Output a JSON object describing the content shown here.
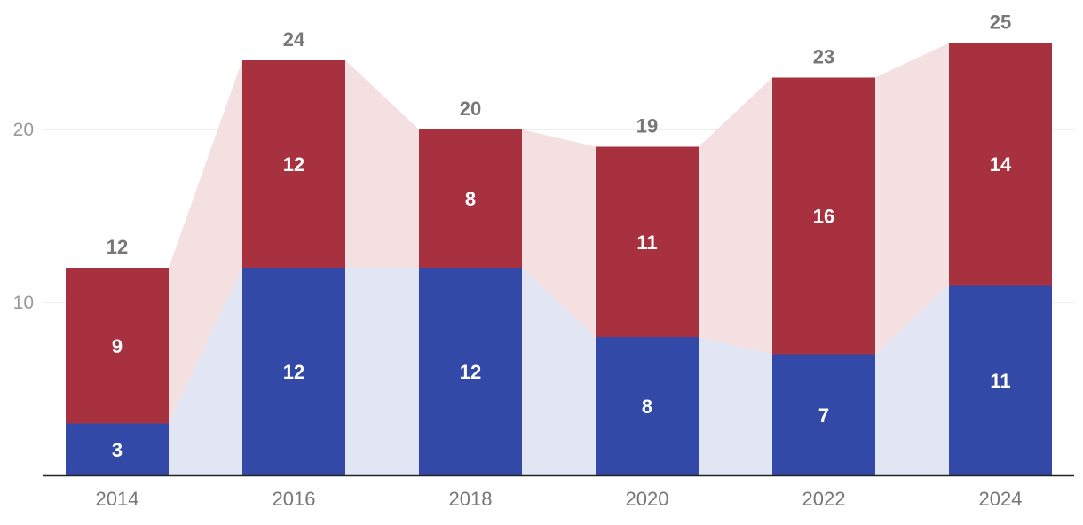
{
  "chart_data": {
    "type": "bar",
    "stacked": true,
    "categories": [
      "2014",
      "2016",
      "2018",
      "2020",
      "2022",
      "2024"
    ],
    "series": [
      {
        "values": [
          3,
          12,
          12,
          8,
          7,
          11
        ],
        "color": "#3349a8",
        "band_color": "#e2e5f4"
      },
      {
        "values": [
          9,
          12,
          8,
          11,
          16,
          14
        ],
        "color": "#a8313f",
        "band_color": "#f4dfe1"
      }
    ],
    "totals": [
      12,
      24,
      20,
      19,
      23,
      25
    ],
    "yticks": [
      10,
      20
    ],
    "ylim": [
      0,
      25
    ],
    "grid": true,
    "legend": "none",
    "title": "",
    "xlabel": "",
    "ylabel": ""
  }
}
